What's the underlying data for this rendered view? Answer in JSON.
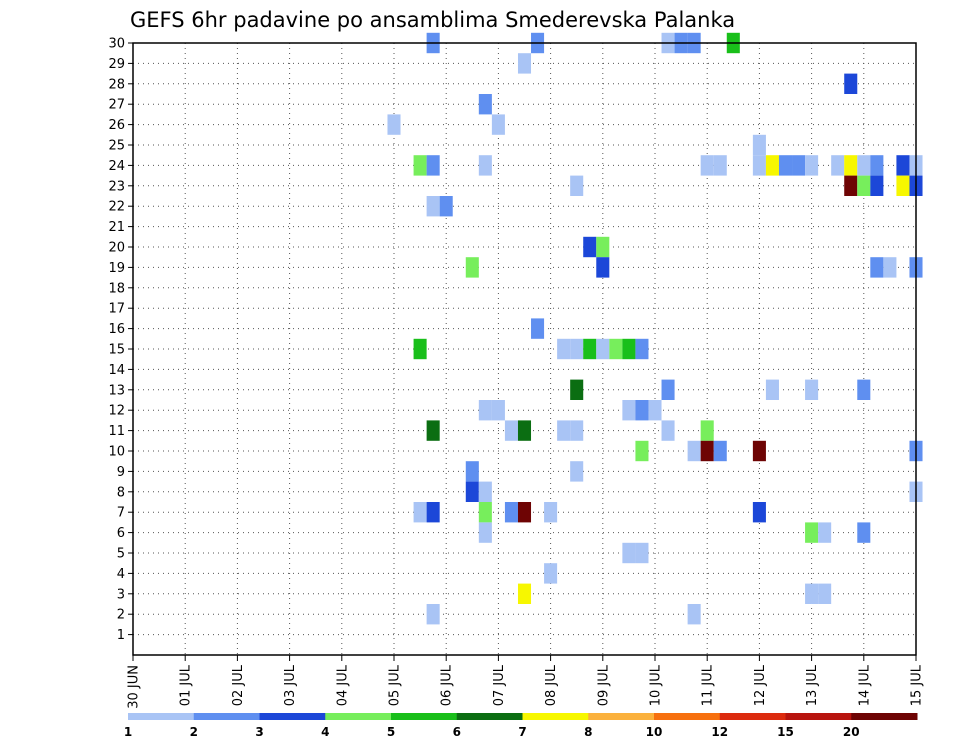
{
  "chart_data": {
    "type": "heatmap",
    "title": "GEFS 6hr padavine po ansamblima Smederevska Palanka",
    "x_tick_labels": [
      "30 JUN",
      "01 JUL",
      "02 JUL",
      "03 JUL",
      "04 JUL",
      "05 JUL",
      "06 JUL",
      "07 JUL",
      "08 JUL",
      "09 JUL",
      "10 JUL",
      "11 JUL",
      "12 JUL",
      "13 JUL",
      "14 JUL",
      "15 JUL"
    ],
    "x_unit": "days from 30 JUN",
    "xlim": [
      0,
      15
    ],
    "y_tick_labels": [
      "1",
      "2",
      "3",
      "4",
      "5",
      "6",
      "7",
      "8",
      "9",
      "10",
      "11",
      "12",
      "13",
      "14",
      "15",
      "16",
      "17",
      "18",
      "19",
      "20",
      "21",
      "22",
      "23",
      "24",
      "25",
      "26",
      "27",
      "28",
      "29",
      "30"
    ],
    "ylim": [
      0,
      30
    ],
    "grid": true,
    "colorbar": {
      "labels": [
        "1",
        "2",
        "3",
        "4",
        "5",
        "6",
        "7",
        "8",
        "10",
        "12",
        "15",
        "20"
      ],
      "colors": [
        "#a9c4f5",
        "#5f8ff0",
        "#1c47d8",
        "#77ee5c",
        "#19bf1a",
        "#0b6e12",
        "#f7f700",
        "#fbb13c",
        "#f7700e",
        "#dc2b0e",
        "#b8140e",
        "#6e0404"
      ]
    },
    "cells": [
      {
        "x": 5.75,
        "y": 30,
        "c": 2
      },
      {
        "x": 7.75,
        "y": 30,
        "c": 2
      },
      {
        "x": 10.25,
        "y": 30,
        "c": 1
      },
      {
        "x": 10.5,
        "y": 30,
        "c": 2
      },
      {
        "x": 10.75,
        "y": 30,
        "c": 2
      },
      {
        "x": 11.5,
        "y": 30,
        "c": 5
      },
      {
        "x": 7.5,
        "y": 29,
        "c": 1
      },
      {
        "x": 13.75,
        "y": 28,
        "c": 3
      },
      {
        "x": 6.75,
        "y": 27,
        "c": 2
      },
      {
        "x": 5.0,
        "y": 26,
        "c": 1
      },
      {
        "x": 7.0,
        "y": 26,
        "c": 1
      },
      {
        "x": 12.0,
        "y": 25,
        "c": 1
      },
      {
        "x": 5.5,
        "y": 24,
        "c": 4
      },
      {
        "x": 5.75,
        "y": 24,
        "c": 2
      },
      {
        "x": 6.75,
        "y": 24,
        "c": 1
      },
      {
        "x": 11.0,
        "y": 24,
        "c": 1
      },
      {
        "x": 11.25,
        "y": 24,
        "c": 1
      },
      {
        "x": 12.0,
        "y": 24,
        "c": 1
      },
      {
        "x": 12.25,
        "y": 24,
        "c": 7
      },
      {
        "x": 12.5,
        "y": 24,
        "c": 2
      },
      {
        "x": 12.75,
        "y": 24,
        "c": 2
      },
      {
        "x": 13.0,
        "y": 24,
        "c": 1
      },
      {
        "x": 13.5,
        "y": 24,
        "c": 1
      },
      {
        "x": 13.75,
        "y": 24,
        "c": 7
      },
      {
        "x": 14.0,
        "y": 24,
        "c": 1
      },
      {
        "x": 14.25,
        "y": 24,
        "c": 2
      },
      {
        "x": 14.75,
        "y": 24,
        "c": 3
      },
      {
        "x": 15.0,
        "y": 24,
        "c": 1
      },
      {
        "x": 8.5,
        "y": 23,
        "c": 1
      },
      {
        "x": 13.75,
        "y": 23,
        "c": 12
      },
      {
        "x": 14.0,
        "y": 23,
        "c": 4
      },
      {
        "x": 14.25,
        "y": 23,
        "c": 3
      },
      {
        "x": 14.75,
        "y": 23,
        "c": 7
      },
      {
        "x": 15.0,
        "y": 23,
        "c": 3
      },
      {
        "x": 5.75,
        "y": 22,
        "c": 1
      },
      {
        "x": 6.0,
        "y": 22,
        "c": 2
      },
      {
        "x": 8.75,
        "y": 20,
        "c": 3
      },
      {
        "x": 9.0,
        "y": 20,
        "c": 4
      },
      {
        "x": 6.5,
        "y": 19,
        "c": 4
      },
      {
        "x": 9.0,
        "y": 19,
        "c": 3
      },
      {
        "x": 14.25,
        "y": 19,
        "c": 2
      },
      {
        "x": 14.5,
        "y": 19,
        "c": 1
      },
      {
        "x": 15.0,
        "y": 19,
        "c": 2
      },
      {
        "x": 7.75,
        "y": 16,
        "c": 2
      },
      {
        "x": 5.5,
        "y": 15,
        "c": 5
      },
      {
        "x": 8.25,
        "y": 15,
        "c": 1
      },
      {
        "x": 8.5,
        "y": 15,
        "c": 1
      },
      {
        "x": 8.75,
        "y": 15,
        "c": 5
      },
      {
        "x": 9.0,
        "y": 15,
        "c": 1
      },
      {
        "x": 9.25,
        "y": 15,
        "c": 4
      },
      {
        "x": 9.5,
        "y": 15,
        "c": 5
      },
      {
        "x": 9.75,
        "y": 15,
        "c": 2
      },
      {
        "x": 8.5,
        "y": 13,
        "c": 6
      },
      {
        "x": 10.25,
        "y": 13,
        "c": 2
      },
      {
        "x": 12.25,
        "y": 13,
        "c": 1
      },
      {
        "x": 13.0,
        "y": 13,
        "c": 1
      },
      {
        "x": 14.0,
        "y": 13,
        "c": 2
      },
      {
        "x": 6.75,
        "y": 12,
        "c": 1
      },
      {
        "x": 7.0,
        "y": 12,
        "c": 1
      },
      {
        "x": 9.5,
        "y": 12,
        "c": 1
      },
      {
        "x": 9.75,
        "y": 12,
        "c": 2
      },
      {
        "x": 10.0,
        "y": 12,
        "c": 1
      },
      {
        "x": 5.75,
        "y": 11,
        "c": 6
      },
      {
        "x": 7.25,
        "y": 11,
        "c": 1
      },
      {
        "x": 7.5,
        "y": 11,
        "c": 6
      },
      {
        "x": 8.25,
        "y": 11,
        "c": 1
      },
      {
        "x": 8.5,
        "y": 11,
        "c": 1
      },
      {
        "x": 10.25,
        "y": 11,
        "c": 1
      },
      {
        "x": 11.0,
        "y": 11,
        "c": 4
      },
      {
        "x": 9.75,
        "y": 10,
        "c": 4
      },
      {
        "x": 10.75,
        "y": 10,
        "c": 1
      },
      {
        "x": 11.0,
        "y": 10,
        "c": 12
      },
      {
        "x": 11.25,
        "y": 10,
        "c": 2
      },
      {
        "x": 12.0,
        "y": 10,
        "c": 12
      },
      {
        "x": 15.0,
        "y": 10,
        "c": 2
      },
      {
        "x": 6.5,
        "y": 9,
        "c": 2
      },
      {
        "x": 8.5,
        "y": 9,
        "c": 1
      },
      {
        "x": 6.5,
        "y": 8,
        "c": 3
      },
      {
        "x": 6.75,
        "y": 8,
        "c": 1
      },
      {
        "x": 15.0,
        "y": 8,
        "c": 1
      },
      {
        "x": 5.5,
        "y": 7,
        "c": 1
      },
      {
        "x": 5.75,
        "y": 7,
        "c": 3
      },
      {
        "x": 6.75,
        "y": 7,
        "c": 4
      },
      {
        "x": 7.25,
        "y": 7,
        "c": 2
      },
      {
        "x": 7.5,
        "y": 7,
        "c": 12
      },
      {
        "x": 8.0,
        "y": 7,
        "c": 1
      },
      {
        "x": 12.0,
        "y": 7,
        "c": 3
      },
      {
        "x": 6.75,
        "y": 6,
        "c": 1
      },
      {
        "x": 13.0,
        "y": 6,
        "c": 4
      },
      {
        "x": 13.25,
        "y": 6,
        "c": 1
      },
      {
        "x": 14.0,
        "y": 6,
        "c": 2
      },
      {
        "x": 9.5,
        "y": 5,
        "c": 1
      },
      {
        "x": 9.75,
        "y": 5,
        "c": 1
      },
      {
        "x": 8.0,
        "y": 4,
        "c": 1
      },
      {
        "x": 7.5,
        "y": 3,
        "c": 7
      },
      {
        "x": 13.0,
        "y": 3,
        "c": 1
      },
      {
        "x": 13.25,
        "y": 3,
        "c": 1
      },
      {
        "x": 5.75,
        "y": 2,
        "c": 1
      },
      {
        "x": 10.75,
        "y": 2,
        "c": 1
      }
    ]
  }
}
